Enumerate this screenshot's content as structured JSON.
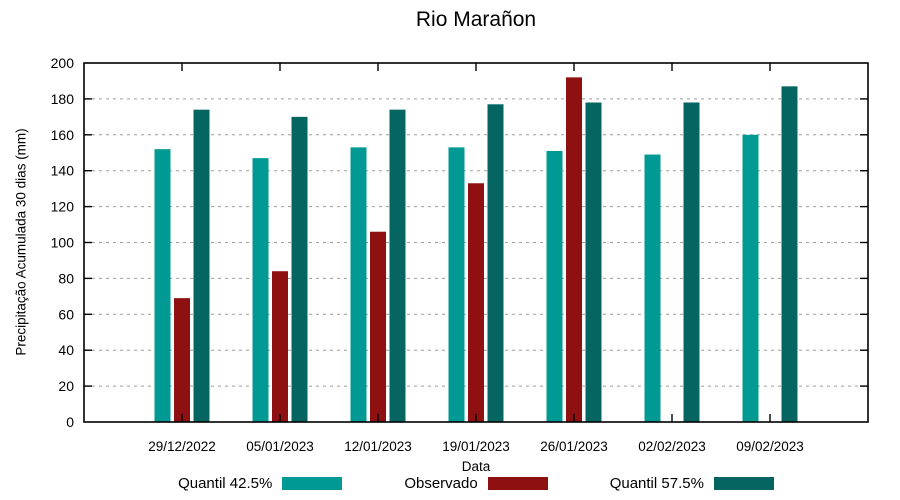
{
  "title": "Rio Marañon",
  "chart_data": {
    "type": "bar",
    "title": "Rio Marañon",
    "xlabel": "Data",
    "ylabel": "Precipitação Acumulada 30 dias (mm)",
    "ylim": [
      0,
      200
    ],
    "yticks": [
      0,
      20,
      40,
      60,
      80,
      100,
      120,
      140,
      160,
      180,
      200
    ],
    "grid": "horizontal-dashed",
    "legend_position": "bottom",
    "categories": [
      "29/12/2022",
      "05/01/2023",
      "12/01/2023",
      "19/01/2023",
      "26/01/2023",
      "02/02/2023",
      "09/02/2023"
    ],
    "series": [
      {
        "name": "Quantil 42.5%",
        "color": "#009993",
        "values": [
          152,
          147,
          153,
          153,
          151,
          149,
          160
        ]
      },
      {
        "name": "Observado",
        "color": "#8e1010",
        "values": [
          69,
          84,
          106,
          133,
          192,
          null,
          null
        ]
      },
      {
        "name": "Quantil 57.5%",
        "color": "#056661",
        "values": [
          174,
          170,
          174,
          177,
          178,
          178,
          187
        ]
      }
    ],
    "colors": {
      "grid": "#9e9e9e",
      "border": "#000000"
    }
  }
}
